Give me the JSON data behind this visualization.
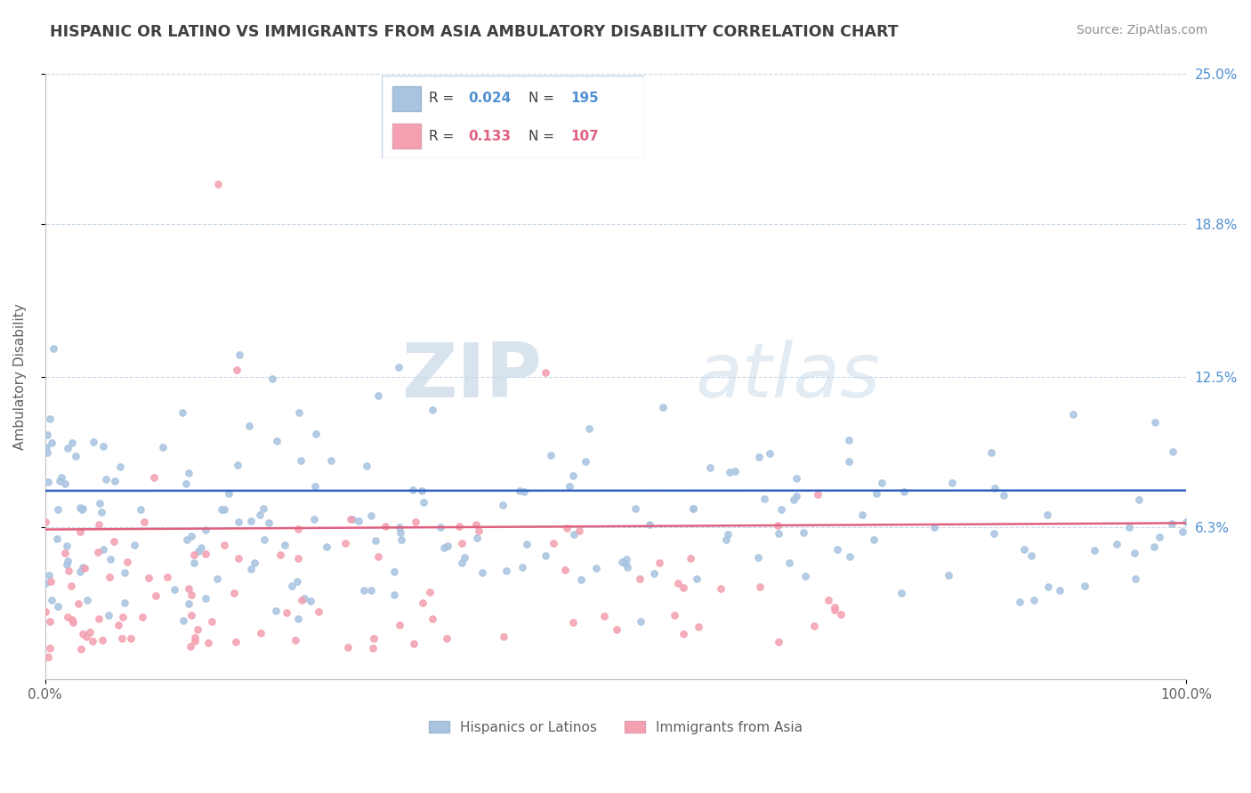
{
  "title": "HISPANIC OR LATINO VS IMMIGRANTS FROM ASIA AMBULATORY DISABILITY CORRELATION CHART",
  "source": "Source: ZipAtlas.com",
  "ylabel": "Ambulatory Disability",
  "xlim": [
    0,
    100
  ],
  "ylim": [
    0,
    25
  ],
  "yticks": [
    6.3,
    12.5,
    18.8,
    25.0
  ],
  "ytick_labels": [
    "6.3%",
    "12.5%",
    "18.8%",
    "25.0%"
  ],
  "xtick_labels": [
    "0.0%",
    "100.0%"
  ],
  "blue_R": 0.024,
  "blue_N": 195,
  "pink_R": 0.133,
  "pink_N": 107,
  "blue_color": "#a8c4e0",
  "pink_color": "#f4a0b0",
  "blue_line_color": "#3060c0",
  "pink_line_color": "#e06080",
  "legend_label_blue": "Hispanics or Latinos",
  "legend_label_pink": "Immigrants from Asia",
  "watermark_zip": "ZIP",
  "watermark_atlas": "atlas",
  "background_color": "#ffffff",
  "grid_color": "#c8d8e8",
  "title_color": "#404040",
  "axis_label_color": "#606060",
  "right_tick_color": "#5090d0",
  "seed_blue": 42,
  "seed_pink": 123
}
